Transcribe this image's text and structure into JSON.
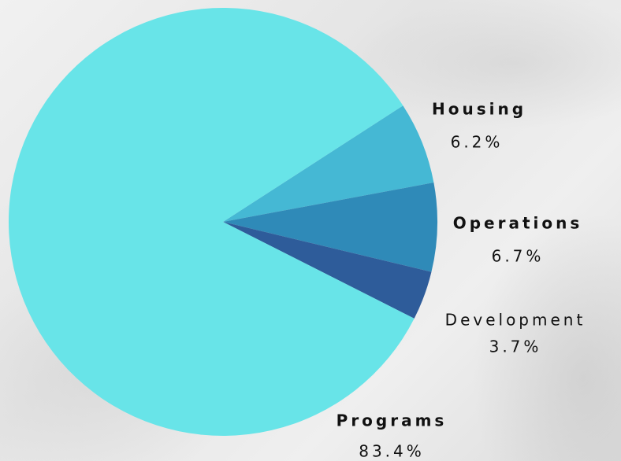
{
  "chart_data": {
    "type": "pie",
    "categories": [
      "Housing",
      "Operations",
      "Development",
      "Programs"
    ],
    "values": [
      6.2,
      6.7,
      3.7,
      83.4
    ],
    "value_labels": [
      "6.2%",
      "6.7%",
      "3.7%",
      "83.4%"
    ],
    "colors": [
      "#45b8d4",
      "#2f8ab8",
      "#2e5c9a",
      "#68e4e8"
    ]
  }
}
